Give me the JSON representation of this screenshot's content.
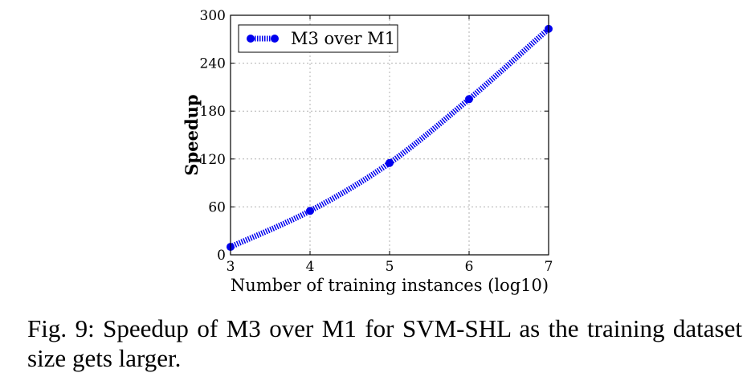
{
  "chart_data": {
    "type": "line",
    "x": [
      3,
      4,
      5,
      6,
      7
    ],
    "series": [
      {
        "name": "M3 over M1",
        "values": [
          10,
          55,
          115,
          195,
          283
        ],
        "color": "#0000ee"
      }
    ],
    "xlabel": "Number of training instances (log10)",
    "ylabel": "Speedup",
    "xlim": [
      3,
      7
    ],
    "ylim": [
      0,
      300
    ],
    "xticks": [
      "3",
      "4",
      "5",
      "6",
      "7"
    ],
    "yticks": [
      "0",
      "60",
      "120",
      "180",
      "240",
      "300"
    ],
    "grid": true,
    "legend_position": "top-left",
    "line_style": "dashed",
    "marker": "circle"
  },
  "caption": "Fig. 9: Speedup of M3 over M1 for SVM-SHL as the training dataset size gets larger."
}
